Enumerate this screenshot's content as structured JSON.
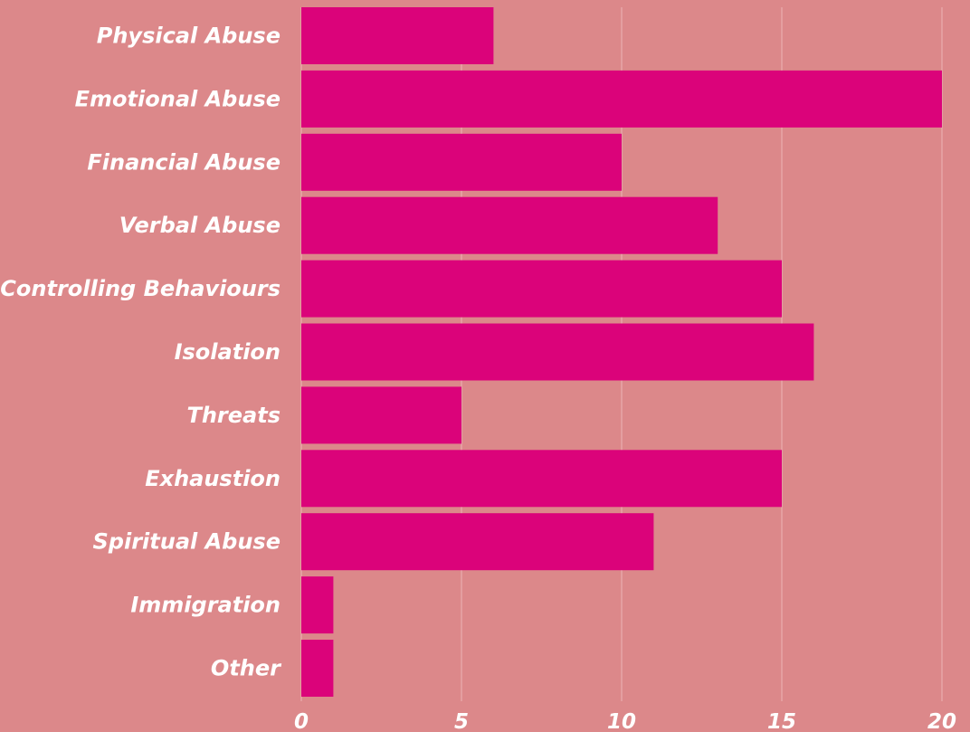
{
  "colors": {
    "background": "#dc888a",
    "bar": "#db037a",
    "grid": "#e8aeb0",
    "text": "#ffffff"
  },
  "chart_data": {
    "type": "bar",
    "orientation": "horizontal",
    "categories": [
      "Physical Abuse",
      "Emotional Abuse",
      "Financial Abuse",
      "Verbal Abuse",
      "Controlling Behaviours",
      "Isolation",
      "Threats",
      "Exhaustion",
      "Spiritual Abuse",
      "Immigration",
      "Other"
    ],
    "values": [
      6,
      20,
      10,
      13,
      15,
      16,
      5,
      15,
      11,
      1,
      1
    ],
    "xlim": [
      0,
      20
    ],
    "xticks": [
      "0",
      "5",
      "10",
      "15",
      "20"
    ],
    "grid": "vertical",
    "legend": "none",
    "title": "",
    "xlabel": "",
    "ylabel": ""
  }
}
